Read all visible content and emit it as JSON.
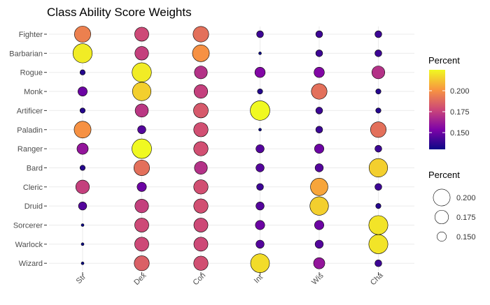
{
  "chart_data": {
    "type": "bubble-matrix",
    "title": "Class Ability Score Weights",
    "xlabel": "",
    "ylabel": "",
    "x_categories": [
      "Str",
      "Dex",
      "Con",
      "Int",
      "Wis",
      "Cha"
    ],
    "y_categories": [
      "Fighter",
      "Barbarian",
      "Rogue",
      "Monk",
      "Artificer",
      "Paladin",
      "Ranger",
      "Bard",
      "Cleric",
      "Druid",
      "Sorcerer",
      "Warlock",
      "Wizard"
    ],
    "values": [
      [
        0.195,
        0.178,
        0.19,
        0.14,
        0.14,
        0.14
      ],
      [
        0.222,
        0.175,
        0.2,
        0.12,
        0.14,
        0.14
      ],
      [
        0.135,
        0.222,
        0.17,
        0.155,
        0.155,
        0.17
      ],
      [
        0.15,
        0.215,
        0.175,
        0.135,
        0.19,
        0.135
      ],
      [
        0.135,
        0.172,
        0.183,
        0.228,
        0.14,
        0.135
      ],
      [
        0.2,
        0.145,
        0.18,
        0.13,
        0.14,
        0.19
      ],
      [
        0.16,
        0.225,
        0.18,
        0.145,
        0.15,
        0.14
      ],
      [
        0.135,
        0.19,
        0.17,
        0.145,
        0.145,
        0.215
      ],
      [
        0.175,
        0.15,
        0.18,
        0.14,
        0.205,
        0.14
      ],
      [
        0.145,
        0.175,
        0.18,
        0.145,
        0.215,
        0.135
      ],
      [
        0.125,
        0.178,
        0.178,
        0.15,
        0.15,
        0.22
      ],
      [
        0.13,
        0.178,
        0.178,
        0.145,
        0.145,
        0.22
      ],
      [
        0.12,
        0.185,
        0.18,
        0.218,
        0.16,
        0.14
      ]
    ],
    "color_legend": {
      "title": "Percent",
      "range": [
        0.13,
        0.225
      ],
      "ticks": [
        0.15,
        0.175,
        0.2
      ],
      "tick_labels": [
        "0.150",
        "0.175",
        "0.200"
      ],
      "colors": [
        "#0d0887",
        "#7e03a8",
        "#cc4778",
        "#f89540",
        "#f0f921"
      ]
    },
    "size_legend": {
      "title": "Percent",
      "values": [
        0.2,
        0.175,
        0.15
      ],
      "labels": [
        "0.200",
        "0.175",
        "0.150"
      ]
    }
  }
}
